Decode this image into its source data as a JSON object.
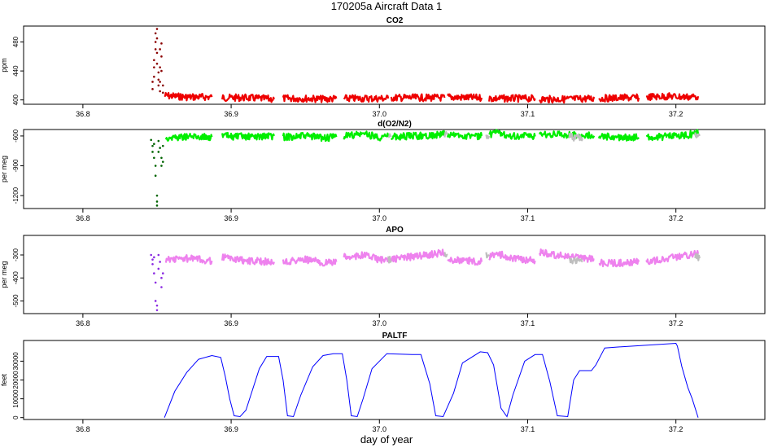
{
  "figure": {
    "title": "170205a   Aircraft Data 1",
    "xlabel": "day of year"
  },
  "chart_data": [
    {
      "type": "scatter",
      "title": "CO2",
      "ylabel": "ppm",
      "xlim": [
        36.76,
        37.26
      ],
      "ylim": [
        394,
        502
      ],
      "xticks": [
        36.8,
        36.9,
        37.0,
        37.1,
        37.2
      ],
      "xtick_labels": [
        "36.8",
        "36.9",
        "37.0",
        "37.1",
        "37.2"
      ],
      "yticks": [
        400,
        440,
        480
      ],
      "ytick_labels": [
        "400",
        "440",
        "480"
      ],
      "grid": false,
      "series": [
        {
          "color": "#8b0000",
          "points": [
            [
              36.847,
              415
            ],
            [
              36.847,
              425
            ],
            [
              36.848,
              432
            ],
            [
              36.848,
              445
            ],
            [
              36.848,
              455
            ],
            [
              36.849,
              470
            ],
            [
              36.849,
              480
            ],
            [
              36.849,
              492
            ],
            [
              36.85,
              498
            ],
            [
              36.85,
              485
            ],
            [
              36.85,
              465
            ],
            [
              36.85,
              450
            ],
            [
              36.851,
              438
            ],
            [
              36.851,
              428
            ],
            [
              36.851,
              420
            ],
            [
              36.852,
              412
            ],
            [
              36.852,
              425
            ],
            [
              36.852,
              445
            ],
            [
              36.852,
              470
            ],
            [
              36.853,
              478
            ],
            [
              36.853,
              460
            ],
            [
              36.853,
              440
            ],
            [
              36.854,
              420
            ],
            [
              36.854,
              410
            ]
          ]
        },
        {
          "color": "#ee0000",
          "segments": [
            [
              [
                36.855,
                406
              ],
              [
                36.87,
                404
              ],
              [
                36.887,
                404
              ]
            ],
            [
              [
                36.894,
                403
              ],
              [
                36.91,
                403
              ],
              [
                36.929,
                401
              ]
            ],
            [
              [
                36.935,
                402
              ],
              [
                36.95,
                402
              ],
              [
                36.965,
                401
              ],
              [
                36.971,
                402
              ]
            ],
            [
              [
                36.976,
                402
              ],
              [
                36.99,
                402
              ],
              [
                37.006,
                402
              ]
            ],
            [
              [
                37.008,
                403
              ],
              [
                37.025,
                403
              ],
              [
                37.044,
                403
              ]
            ],
            [
              [
                37.046,
                404
              ],
              [
                37.06,
                403
              ],
              [
                37.069,
                403
              ]
            ],
            [
              [
                37.074,
                402
              ],
              [
                37.09,
                402
              ],
              [
                37.105,
                402
              ]
            ],
            [
              [
                37.108,
                401
              ],
              [
                37.125,
                401
              ],
              [
                37.145,
                402
              ]
            ],
            [
              [
                37.148,
                402
              ],
              [
                37.165,
                403
              ],
              [
                37.175,
                403
              ]
            ],
            [
              [
                37.18,
                404
              ],
              [
                37.195,
                405
              ],
              [
                37.207,
                404
              ],
              [
                37.215,
                405
              ]
            ]
          ]
        }
      ]
    },
    {
      "type": "scatter",
      "title": "d(O2/N2)",
      "ylabel": "per meg",
      "xlim": [
        36.76,
        37.26
      ],
      "ylim": [
        -1330,
        -535
      ],
      "xticks": [
        36.8,
        36.9,
        37.0,
        37.1,
        37.2
      ],
      "xtick_labels": [
        "36.8",
        "36.9",
        "37.0",
        "37.1",
        "37.2"
      ],
      "yticks": [
        -1200,
        -900,
        -600
      ],
      "ytick_labels": [
        "-1200",
        "-900",
        "-600"
      ],
      "grid": false,
      "series": [
        {
          "color": "#006400",
          "points": [
            [
              36.846,
              -640
            ],
            [
              36.847,
              -700
            ],
            [
              36.847,
              -760
            ],
            [
              36.848,
              -680
            ],
            [
              36.848,
              -820
            ],
            [
              36.849,
              -900
            ],
            [
              36.849,
              -1000
            ],
            [
              36.85,
              -1200
            ],
            [
              36.85,
              -1260
            ],
            [
              36.85,
              -1300
            ],
            [
              36.851,
              -760
            ],
            [
              36.851,
              -650
            ],
            [
              36.852,
              -720
            ],
            [
              36.853,
              -820
            ],
            [
              36.853,
              -900
            ],
            [
              36.854,
              -860
            ],
            [
              36.854,
              -700
            ]
          ]
        },
        {
          "color": "#00ee00",
          "segments": [
            [
              [
                36.856,
                -620
              ],
              [
                36.87,
                -605
              ],
              [
                36.887,
                -610
              ]
            ],
            [
              [
                36.894,
                -600
              ],
              [
                36.91,
                -610
              ],
              [
                36.929,
                -600
              ]
            ],
            [
              [
                36.935,
                -610
              ],
              [
                36.95,
                -600
              ],
              [
                36.965,
                -620
              ],
              [
                36.971,
                -610
              ]
            ],
            [
              [
                36.976,
                -600
              ],
              [
                36.99,
                -580
              ],
              [
                37.0,
                -610
              ],
              [
                37.006,
                -610
              ]
            ],
            [
              [
                37.008,
                -610
              ],
              [
                37.025,
                -600
              ],
              [
                37.044,
                -585
              ]
            ],
            [
              [
                37.046,
                -590
              ],
              [
                37.06,
                -600
              ],
              [
                37.069,
                -600
              ]
            ],
            [
              [
                37.074,
                -590
              ],
              [
                37.08,
                -570
              ],
              [
                37.09,
                -600
              ],
              [
                37.105,
                -605
              ]
            ],
            [
              [
                37.108,
                -580
              ],
              [
                37.125,
                -590
              ],
              [
                37.145,
                -600
              ]
            ],
            [
              [
                37.148,
                -605
              ],
              [
                37.165,
                -615
              ],
              [
                37.175,
                -615
              ]
            ],
            [
              [
                37.18,
                -620
              ],
              [
                37.195,
                -605
              ],
              [
                37.207,
                -590
              ],
              [
                37.215,
                -575
              ]
            ]
          ]
        },
        {
          "color": "#bebebe",
          "segments": [
            [
              [
                37.006,
                -620
              ],
              [
                37.008,
                -610
              ]
            ],
            [
              [
                37.044,
                -600
              ],
              [
                37.046,
                -590
              ]
            ],
            [
              [
                37.072,
                -585
              ],
              [
                37.074,
                -600
              ]
            ],
            [
              [
                37.128,
                -610
              ],
              [
                37.137,
                -620
              ]
            ],
            [
              [
                37.213,
                -580
              ],
              [
                37.216,
                -600
              ]
            ]
          ]
        }
      ]
    },
    {
      "type": "scatter",
      "title": "APO",
      "ylabel": "per meg",
      "xlim": [
        36.76,
        37.26
      ],
      "ylim": [
        -555,
        -215
      ],
      "xticks": [
        36.8,
        36.9,
        37.0,
        37.1,
        37.2
      ],
      "xtick_labels": [
        "36.8",
        "36.9",
        "37.0",
        "37.1",
        "37.2"
      ],
      "yticks": [
        -500,
        -400,
        -300
      ],
      "ytick_labels": [
        "-500",
        "-400",
        "-300"
      ],
      "grid": false,
      "series": [
        {
          "color": "#8b2be2",
          "points": [
            [
              36.846,
              -300
            ],
            [
              36.847,
              -320
            ],
            [
              36.847,
              -340
            ],
            [
              36.848,
              -310
            ],
            [
              36.848,
              -380
            ],
            [
              36.849,
              -420
            ],
            [
              36.849,
              -500
            ],
            [
              36.85,
              -540
            ],
            [
              36.85,
              -520
            ],
            [
              36.851,
              -360
            ],
            [
              36.851,
              -300
            ],
            [
              36.852,
              -330
            ],
            [
              36.853,
              -400
            ],
            [
              36.853,
              -440
            ],
            [
              36.854,
              -380
            ]
          ]
        },
        {
          "color": "#ee82ee",
          "segments": [
            [
              [
                36.856,
                -320
              ],
              [
                36.87,
                -315
              ],
              [
                36.887,
                -325
              ]
            ],
            [
              [
                36.894,
                -310
              ],
              [
                36.91,
                -325
              ],
              [
                36.929,
                -330
              ]
            ],
            [
              [
                36.935,
                -330
              ],
              [
                36.95,
                -320
              ],
              [
                36.965,
                -335
              ],
              [
                36.971,
                -330
              ]
            ],
            [
              [
                36.976,
                -310
              ],
              [
                36.99,
                -300
              ],
              [
                37.0,
                -320
              ],
              [
                37.006,
                -325
              ]
            ],
            [
              [
                37.008,
                -320
              ],
              [
                37.025,
                -305
              ],
              [
                37.044,
                -290
              ]
            ],
            [
              [
                37.046,
                -320
              ],
              [
                37.06,
                -325
              ],
              [
                37.069,
                -330
              ]
            ],
            [
              [
                37.074,
                -310
              ],
              [
                37.08,
                -295
              ],
              [
                37.09,
                -315
              ],
              [
                37.105,
                -325
              ]
            ],
            [
              [
                37.108,
                -290
              ],
              [
                37.125,
                -305
              ],
              [
                37.145,
                -320
              ]
            ],
            [
              [
                37.148,
                -335
              ],
              [
                37.165,
                -335
              ],
              [
                37.175,
                -330
              ]
            ],
            [
              [
                37.18,
                -330
              ],
              [
                37.195,
                -315
              ],
              [
                37.207,
                -300
              ],
              [
                37.215,
                -295
              ]
            ]
          ]
        },
        {
          "color": "#bebebe",
          "segments": [
            [
              [
                37.006,
                -320
              ],
              [
                37.008,
                -325
              ]
            ],
            [
              [
                37.044,
                -290
              ],
              [
                37.046,
                -300
              ]
            ],
            [
              [
                37.072,
                -295
              ],
              [
                37.074,
                -305
              ]
            ],
            [
              [
                37.128,
                -320
              ],
              [
                37.137,
                -330
              ]
            ],
            [
              [
                37.213,
                -300
              ],
              [
                37.216,
                -315
              ]
            ]
          ]
        }
      ]
    },
    {
      "type": "line",
      "title": "PALTF",
      "ylabel": "feet",
      "xlim": [
        36.76,
        37.26
      ],
      "ylim": [
        -1000,
        41000
      ],
      "xticks": [
        36.8,
        36.9,
        37.0,
        37.1,
        37.2
      ],
      "xtick_labels": [
        "36.8",
        "36.9",
        "37.0",
        "37.1",
        "37.2"
      ],
      "yticks": [
        0,
        10000,
        20000,
        30000
      ],
      "ytick_labels": [
        "0",
        "10000",
        "20000",
        "30000"
      ],
      "grid": false,
      "series": [
        {
          "color": "#0000ff",
          "x": [
            36.855,
            36.862,
            36.87,
            36.878,
            36.887,
            36.893,
            36.896,
            36.899,
            36.902,
            36.906,
            36.91,
            36.919,
            36.924,
            36.928,
            36.932,
            36.935,
            36.938,
            36.942,
            36.947,
            36.955,
            36.962,
            36.969,
            36.975,
            36.978,
            36.981,
            36.985,
            36.989,
            36.995,
            37.005,
            37.022,
            37.028,
            37.034,
            37.038,
            37.043,
            37.05,
            37.056,
            37.068,
            37.073,
            37.077,
            37.082,
            37.086,
            37.09,
            37.098,
            37.105,
            37.11,
            37.115,
            37.12,
            37.127,
            37.131,
            37.135,
            37.14,
            37.143,
            37.146,
            37.152,
            37.16,
            37.2,
            37.201,
            37.204,
            37.208,
            37.211,
            37.215
          ],
          "y": [
            0,
            14000,
            24000,
            31000,
            33000,
            32000,
            22000,
            10000,
            1000,
            500,
            4000,
            26000,
            32500,
            32500,
            32500,
            20000,
            1000,
            500,
            12000,
            27000,
            33000,
            34000,
            34000,
            20000,
            1000,
            500,
            10000,
            26000,
            34000,
            33500,
            33500,
            18000,
            1000,
            500,
            13000,
            29000,
            35000,
            34500,
            28000,
            5000,
            500,
            12000,
            30000,
            33500,
            33500,
            19000,
            1000,
            500,
            20000,
            25000,
            25000,
            25000,
            28000,
            37000,
            37500,
            39500,
            38000,
            27000,
            16000,
            10000,
            0
          ]
        }
      ]
    }
  ]
}
